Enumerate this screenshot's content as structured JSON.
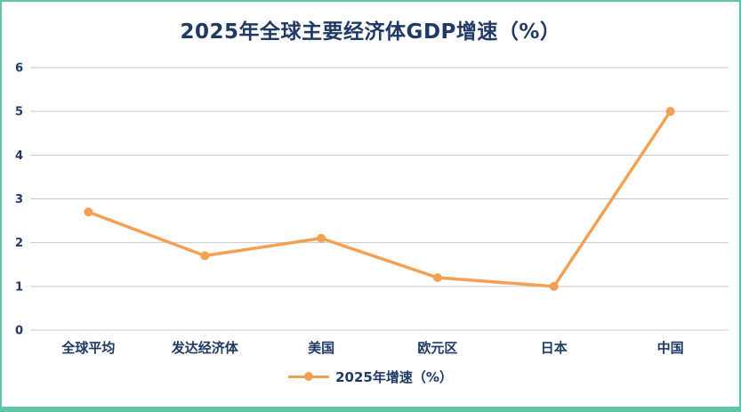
{
  "title": "2025年全球主要经济体GDP增速（%）",
  "chart_data": {
    "type": "line",
    "categories": [
      "全球平均",
      "发达经济体",
      "美国",
      "欧元区",
      "日本",
      "中国"
    ],
    "series": [
      {
        "name": "2025年增速（%）",
        "values": [
          2.7,
          1.7,
          2.1,
          1.2,
          1.0,
          5.0
        ]
      }
    ],
    "title": "2025年全球主要经济体GDP增速（%）",
    "xlabel": "",
    "ylabel": "",
    "ylim": [
      0,
      6
    ],
    "yticks": [
      0,
      1,
      2,
      3,
      4,
      5,
      6
    ],
    "grid": true,
    "legend_position": "bottom"
  },
  "legend": {
    "label": "2025年增速（%）"
  },
  "colors": {
    "line": "#F2A154",
    "marker": "#F2A154",
    "title_text": "#1F3864",
    "axis_text": "#1F3864",
    "gridline": "#C9C9C9",
    "border": "#5EC5A7",
    "background": "#FFFFFF"
  }
}
